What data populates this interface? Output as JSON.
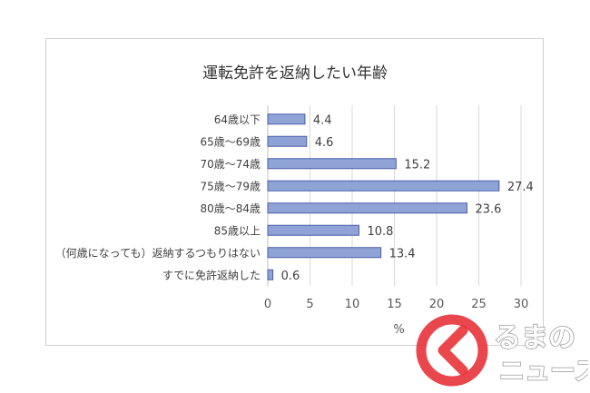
{
  "chart_data": {
    "type": "bar",
    "orientation": "horizontal",
    "title": "運転免許を返納したい年齢",
    "xlabel": "%",
    "xlim": [
      0,
      30
    ],
    "xticks": [
      "0",
      "5",
      "10",
      "15",
      "20",
      "25",
      "30"
    ],
    "grid": true,
    "categories": [
      "64歳以下",
      "65歳～69歳",
      "70歳～74歳",
      "75歳～79歳",
      "80歳～84歳",
      "85歳以上",
      "（何歳になっても）返納するつもりはない",
      "すでに免許返納した"
    ],
    "values": [
      4.4,
      4.6,
      15.2,
      27.4,
      23.6,
      10.8,
      13.4,
      0.6
    ],
    "value_labels": [
      "4.4",
      "4.6",
      "15.2",
      "27.4",
      "23.6",
      "10.8",
      "13.4",
      "0.6"
    ],
    "bar_color": "#8fa3d6",
    "bar_stroke": "#4a5fa8"
  },
  "watermark": {
    "text": "るまのニュース",
    "accent_color": "#e8333a"
  }
}
